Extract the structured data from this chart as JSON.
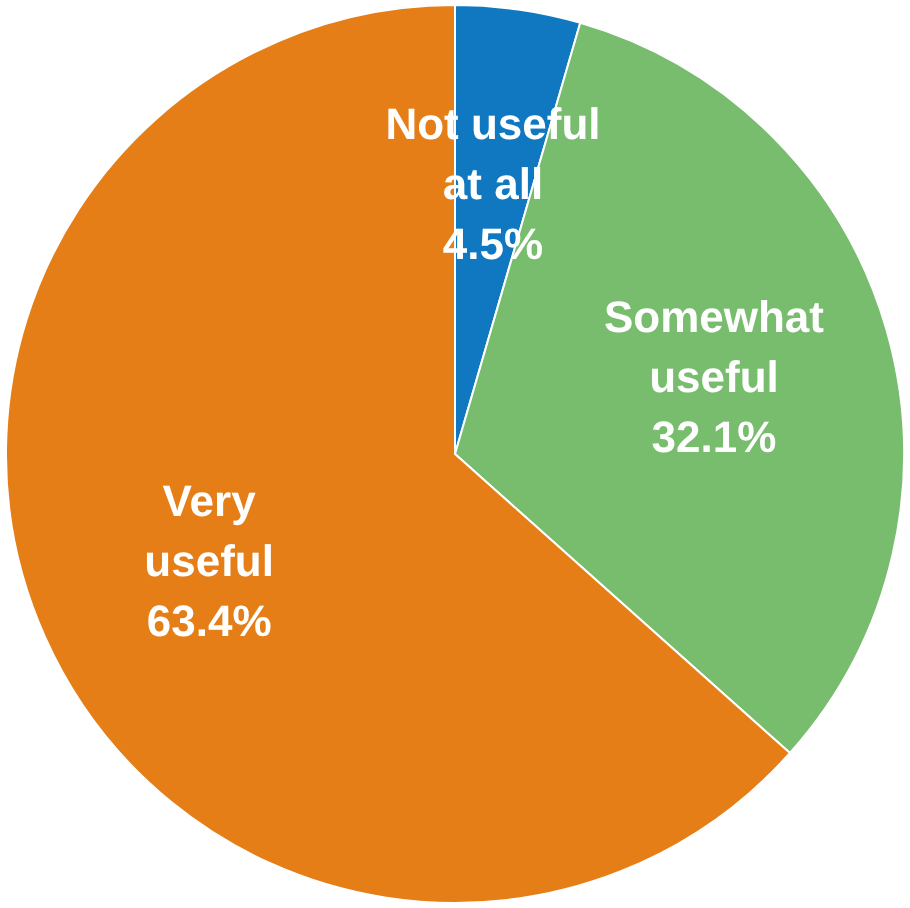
{
  "chart_data": {
    "type": "pie",
    "categories": [
      "Not useful at all",
      "Somewhat useful",
      "Very useful"
    ],
    "values": [
      4.5,
      32.1,
      63.4
    ],
    "colors": [
      "#0f78c0",
      "#78bd6e",
      "#e57e17"
    ],
    "value_labels": [
      "4.5%",
      "32.1%",
      "63.4%"
    ],
    "legend": false
  }
}
